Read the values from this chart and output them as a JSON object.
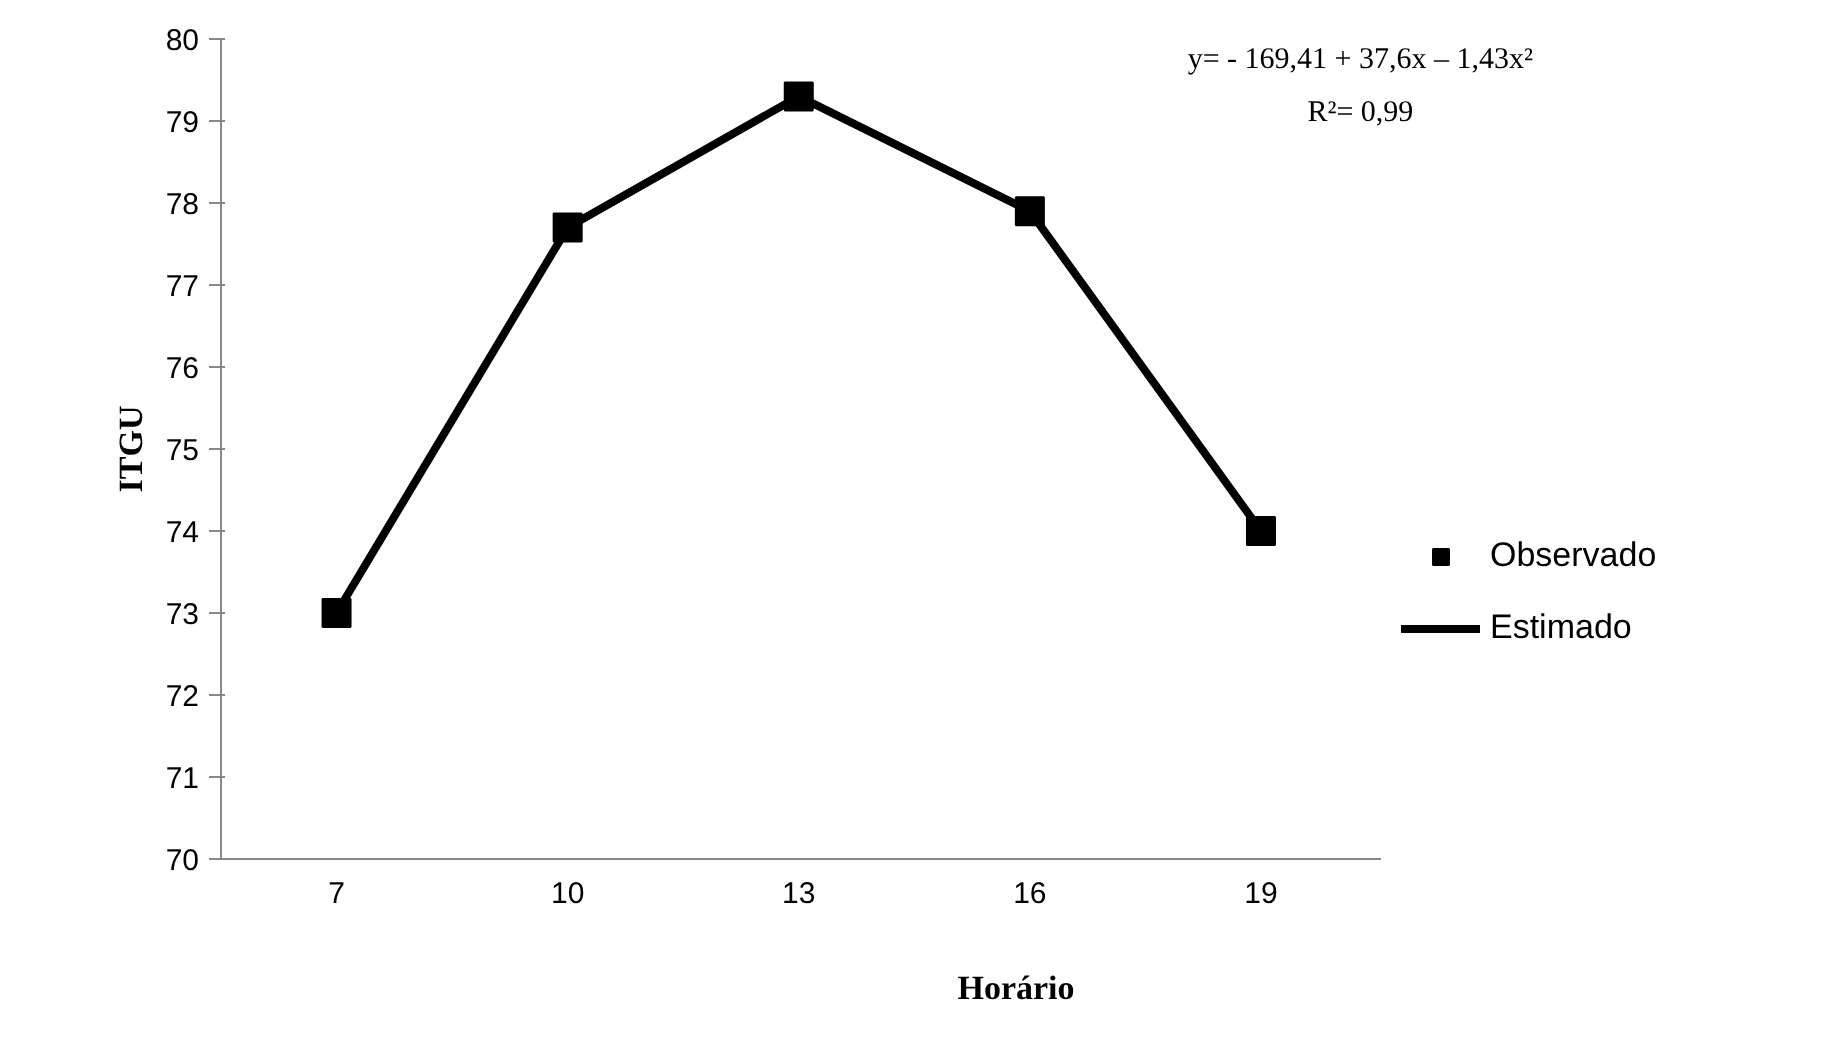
{
  "chart_data": {
    "type": "line",
    "xlabel": "Horário",
    "ylabel": "ITGU",
    "categories": [
      "7",
      "10",
      "13",
      "16",
      "19"
    ],
    "series": [
      {
        "name": "Observado",
        "type": "scatter",
        "color": "#000000",
        "marker": "square",
        "values": [
          73.0,
          77.7,
          79.3,
          77.9,
          74.0
        ]
      },
      {
        "name": "Estimado",
        "type": "line",
        "color": "#000000",
        "marker": "none",
        "line_style": "solid",
        "values": [
          73.0,
          77.7,
          79.3,
          77.9,
          74.0
        ]
      }
    ],
    "ylim": [
      70,
      80
    ],
    "yticks": [
      70,
      71,
      72,
      73,
      74,
      75,
      76,
      77,
      78,
      79,
      80
    ],
    "grid": false,
    "legend": "right",
    "annotations": [
      "y= - 169,41 + 37,6x – 1,43x²",
      "R²= 0,99"
    ]
  }
}
